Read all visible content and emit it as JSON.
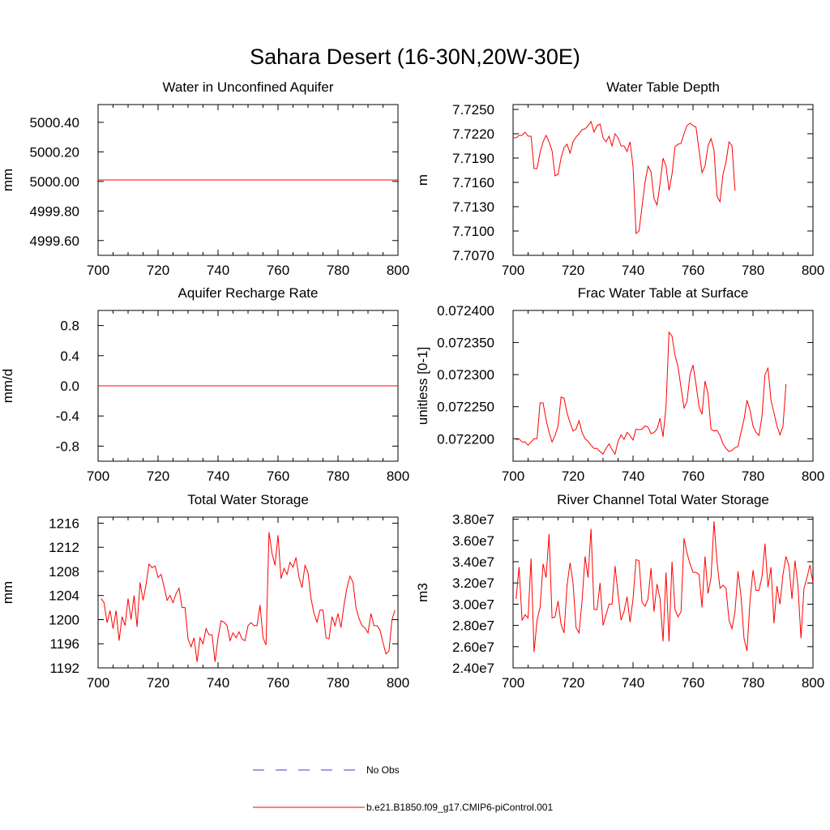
{
  "figure": {
    "title": "Sahara Desert (16-30N,20W-30E)",
    "line_color": "#ff0000",
    "obs_color": "#3b3bd6"
  },
  "legend": {
    "items": [
      {
        "label": "No Obs",
        "style": "dashed",
        "color": "#3b3bd6"
      },
      {
        "label": "b.e21.B1850.f09_g17.CMIP6-piControl.001",
        "style": "solid",
        "color": "#ff0000"
      }
    ]
  },
  "chart_data": [
    {
      "type": "line",
      "title": "Water in Unconfined Aquifer",
      "ylabel": "mm",
      "xlim": [
        700,
        800
      ],
      "ylim": [
        4999.5,
        5000.52
      ],
      "xticks": [
        "700",
        "720",
        "740",
        "760",
        "780",
        "800"
      ],
      "yticks": [
        "5000.40",
        "5000.20",
        "5000.00",
        "4999.80",
        "4999.60"
      ],
      "ytick_values": [
        5000.4,
        5000.2,
        5000.0,
        4999.8,
        4999.6
      ],
      "x_start": 700,
      "series": [
        {
          "values": [
            5000.01,
            5000.01
          ]
        }
      ],
      "series_x": [
        700,
        800
      ]
    },
    {
      "type": "line",
      "title": "Water Table Depth",
      "ylabel": "m",
      "xlim": [
        700,
        800
      ],
      "ylim": [
        7.707,
        7.7256
      ],
      "xticks": [
        "700",
        "720",
        "740",
        "760",
        "780",
        "800"
      ],
      "yticks": [
        "7.7250",
        "7.7220",
        "7.7190",
        "7.7160",
        "7.7130",
        "7.7100",
        "7.7070"
      ],
      "ytick_values": [
        7.725,
        7.722,
        7.719,
        7.716,
        7.713,
        7.71,
        7.707
      ],
      "x_start": 700,
      "series": [
        {
          "values": [
            7.7215,
            7.7215,
            7.7218,
            7.7218,
            7.7222,
            7.7217,
            7.7217,
            7.7177,
            7.7177,
            7.7197,
            7.721,
            7.7218,
            7.721,
            7.7199,
            7.7168,
            7.717,
            7.719,
            7.7203,
            7.7207,
            7.7196,
            7.721,
            7.7216,
            7.722,
            7.7225,
            7.7226,
            7.723,
            7.7235,
            7.7222,
            7.723,
            7.7232,
            7.7215,
            7.721,
            7.7217,
            7.7205,
            7.722,
            7.7215,
            7.7205,
            7.7205,
            7.7198,
            7.721,
            7.718,
            7.7097,
            7.71,
            7.713,
            7.716,
            7.718,
            7.7173,
            7.714,
            7.7132,
            7.7158,
            7.719,
            7.718,
            7.715,
            7.717,
            7.7204,
            7.7207,
            7.7208,
            7.722,
            7.723,
            7.7233,
            7.723,
            7.7228,
            7.72,
            7.7172,
            7.718,
            7.7205,
            7.7214,
            7.72,
            7.7143,
            7.7136,
            7.717,
            7.7185,
            7.721,
            7.7205,
            7.715
          ]
        }
      ]
    },
    {
      "type": "line",
      "title": "Aquifer Recharge Rate",
      "ylabel": "mm/d",
      "xlim": [
        700,
        800
      ],
      "ylim": [
        -1.0,
        1.0
      ],
      "xticks": [
        "700",
        "720",
        "740",
        "760",
        "780",
        "800"
      ],
      "yticks": [
        "0.8",
        "0.4",
        "0.0",
        "-0.4",
        "-0.8"
      ],
      "ytick_values": [
        0.8,
        0.4,
        0.0,
        -0.4,
        -0.8
      ],
      "series": [
        {
          "values": [
            0.0,
            0.0
          ]
        }
      ],
      "series_x": [
        700,
        800
      ]
    },
    {
      "type": "line",
      "title": "Frac Water Table at Surface",
      "ylabel": "unitless [0-1]",
      "xlim": [
        700,
        800
      ],
      "ylim": [
        0.072165,
        0.0724
      ],
      "xticks": [
        "700",
        "720",
        "740",
        "760",
        "780",
        "800"
      ],
      "yticks": [
        "0.072400",
        "0.072350",
        "0.072300",
        "0.072250",
        "0.072200"
      ],
      "ytick_values": [
        0.0724,
        0.07235,
        0.0723,
        0.07225,
        0.0722
      ],
      "x_start": 701,
      "series": [
        {
          "values": [
            0.072198,
            0.0722,
            0.072195,
            0.072195,
            0.07219,
            0.072195,
            0.0722,
            0.0722,
            0.072256,
            0.072256,
            0.07223,
            0.07221,
            0.072195,
            0.072205,
            0.07222,
            0.072265,
            0.072263,
            0.07224,
            0.072225,
            0.072212,
            0.072215,
            0.072228,
            0.07221,
            0.0722,
            0.072196,
            0.07219,
            0.072185,
            0.072185,
            0.07218,
            0.072176,
            0.072185,
            0.072192,
            0.072183,
            0.072176,
            0.072196,
            0.072206,
            0.072199,
            0.07221,
            0.072205,
            0.072198,
            0.072215,
            0.072214,
            0.072215,
            0.07222,
            0.072218,
            0.072208,
            0.07221,
            0.072215,
            0.072232,
            0.072203,
            0.07225,
            0.072366,
            0.07236,
            0.07233,
            0.072312,
            0.07228,
            0.072248,
            0.072258,
            0.0723,
            0.072315,
            0.072285,
            0.07225,
            0.072238,
            0.07229,
            0.07227,
            0.072215,
            0.072212,
            0.072213,
            0.072205,
            0.072192,
            0.072185,
            0.07218,
            0.072182,
            0.072186,
            0.072188,
            0.07221,
            0.07223,
            0.07226,
            0.072245,
            0.07222,
            0.07221,
            0.072205,
            0.072235,
            0.0723,
            0.07231,
            0.07226,
            0.07224,
            0.07222,
            0.072206,
            0.07222,
            0.072285
          ]
        }
      ]
    },
    {
      "type": "line",
      "title": "Total Water Storage",
      "ylabel": "mm",
      "xlim": [
        700,
        800
      ],
      "ylim": [
        1192,
        1217
      ],
      "xticks": [
        "700",
        "720",
        "740",
        "760",
        "780",
        "800"
      ],
      "yticks": [
        "1216",
        "1212",
        "1208",
        "1204",
        "1200",
        "1196",
        "1192"
      ],
      "ytick_values": [
        1216,
        1212,
        1208,
        1204,
        1200,
        1196,
        1192
      ],
      "x_start": 701,
      "series": [
        {
          "values": [
            1203.5,
            1202.8,
            1199.5,
            1201.5,
            1198.5,
            1201.5,
            1196.5,
            1200.5,
            1199.0,
            1203.5,
            1200.0,
            1204.0,
            1198.8,
            1206.2,
            1203.2,
            1205.8,
            1209.2,
            1208.6,
            1208.9,
            1207.0,
            1207.5,
            1205.5,
            1203.2,
            1204.0,
            1202.8,
            1204.3,
            1205.2,
            1202.0,
            1202.0,
            1196.8,
            1195.5,
            1197.0,
            1193.0,
            1197.0,
            1196.0,
            1198.5,
            1197.5,
            1197.5,
            1193.0,
            1197.0,
            1199.8,
            1199.6,
            1199.0,
            1196.5,
            1197.8,
            1197.0,
            1198.0,
            1196.8,
            1196.5,
            1199.0,
            1199.5,
            1199.0,
            1199.0,
            1202.4,
            1197.0,
            1195.8,
            1214.5,
            1211.0,
            1209.0,
            1214.0,
            1206.8,
            1208.5,
            1207.5,
            1209.5,
            1208.7,
            1210.3,
            1207.0,
            1205.3,
            1209.0,
            1207.8,
            1203.5,
            1201.0,
            1199.6,
            1201.6,
            1201.6,
            1197.0,
            1196.8,
            1200.5,
            1199.0,
            1201.0,
            1198.7,
            1202.4,
            1205.3,
            1207.2,
            1206.2,
            1202.0,
            1200.2,
            1199.0,
            1198.6,
            1197.8,
            1201.0,
            1199.0,
            1199.0,
            1198.3,
            1196.2,
            1194.3,
            1194.8,
            1200.0,
            1201.6
          ]
        }
      ]
    },
    {
      "type": "line",
      "title": "River Channel Total Water Storage",
      "ylabel": "m3",
      "xlim": [
        700,
        800
      ],
      "ylim": [
        24000000.0,
        38200000.0
      ],
      "xticks": [
        "700",
        "720",
        "740",
        "760",
        "780",
        "800"
      ],
      "yticks": [
        "3.80e7",
        "3.60e7",
        "3.40e7",
        "3.20e7",
        "3.00e7",
        "2.80e7",
        "2.60e7",
        "2.40e7"
      ],
      "ytick_values": [
        38000000.0,
        36000000.0,
        34000000.0,
        32000000.0,
        30000000.0,
        28000000.0,
        26000000.0,
        24000000.0
      ],
      "x_start": 701,
      "series": [
        {
          "values": [
            30500000,
            33500000,
            28500000,
            29000000,
            28700000,
            34300000,
            25500000,
            28500000,
            29700000,
            33800000,
            32500000,
            36600000,
            28700000,
            28800000,
            30300000,
            28100000,
            27300000,
            31800000,
            33900000,
            32000000,
            27800000,
            27300000,
            30300000,
            34500000,
            32500000,
            37100000,
            29500000,
            29500000,
            32000000,
            28000000,
            29000000,
            30000000,
            30000000,
            33600000,
            31000000,
            28500000,
            29300000,
            30700000,
            28300000,
            30500000,
            34200000,
            34100000,
            30200000,
            29800000,
            30500000,
            33400000,
            29300000,
            31900000,
            30500000,
            26500000,
            33000000,
            26500000,
            34000000,
            29500000,
            28800000,
            29300000,
            36200000,
            34800000,
            33800000,
            33000000,
            33000000,
            32800000,
            29700000,
            34500000,
            31000000,
            32500000,
            37800000,
            34000000,
            31500000,
            31800000,
            31500000,
            28500000,
            27700000,
            29300000,
            33100000,
            30800000,
            26800000,
            25600000,
            30300000,
            33200000,
            31300000,
            31300000,
            32600000,
            35700000,
            31600000,
            33500000,
            28200000,
            31700000,
            30000000,
            32800000,
            34500000,
            33600000,
            30500000,
            34100000,
            31700000,
            26800000,
            31500000,
            32500000,
            33700000,
            32000000
          ]
        }
      ]
    }
  ]
}
